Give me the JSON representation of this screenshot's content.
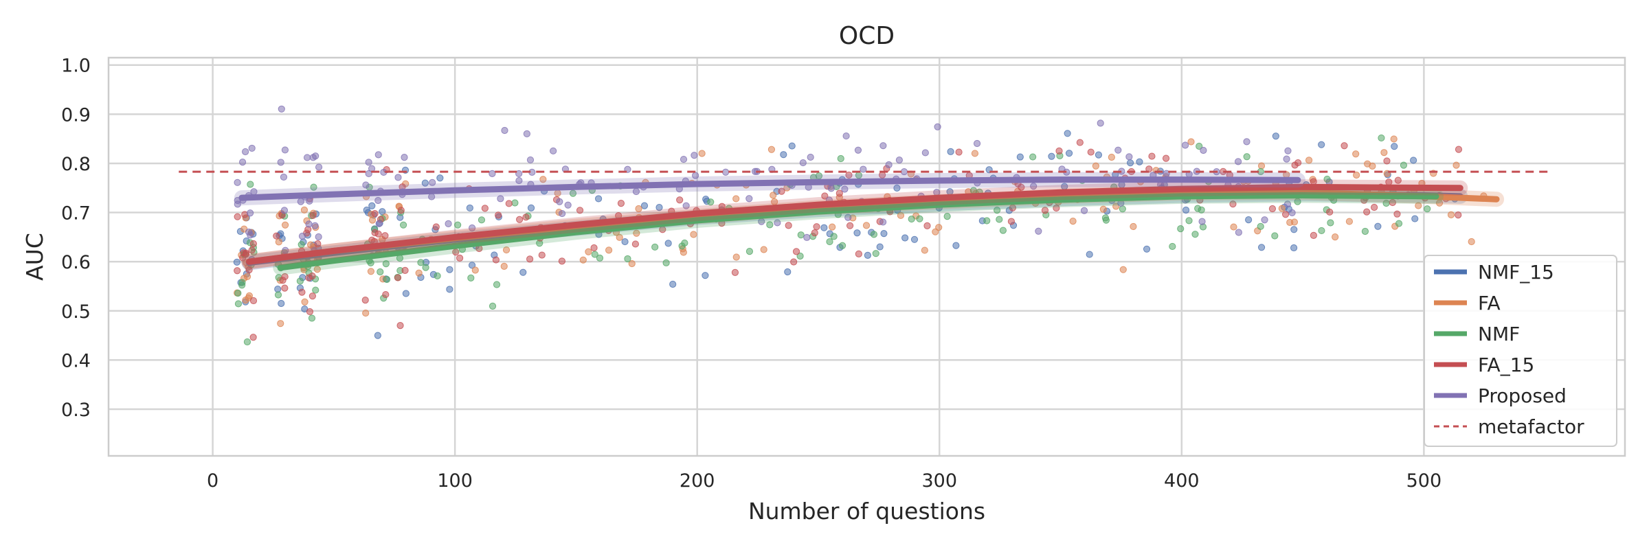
{
  "chart_data": {
    "type": "scatter",
    "title": "OCD",
    "xlabel": "Number of questions",
    "ylabel": "AUC",
    "xlim": [
      -43,
      583
    ],
    "ylim": [
      0.205,
      1.015
    ],
    "xticks": [
      0,
      100,
      200,
      300,
      400,
      500
    ],
    "yticks": [
      0.3,
      0.4,
      0.5,
      0.6,
      0.7,
      0.8,
      0.9,
      1.0
    ],
    "grid": true,
    "legend_position": "lower-right",
    "series": [
      {
        "name": "NMF_15",
        "color": "#4c72b0",
        "fit_line": [
          [
            15,
            0.598
          ],
          [
            50,
            0.618
          ],
          [
            100,
            0.645
          ],
          [
            150,
            0.668
          ],
          [
            200,
            0.69
          ],
          [
            250,
            0.706
          ],
          [
            300,
            0.718
          ],
          [
            350,
            0.728
          ],
          [
            400,
            0.735
          ],
          [
            450,
            0.738
          ],
          [
            500,
            0.735
          ],
          [
            515,
            0.733
          ]
        ]
      },
      {
        "name": "FA",
        "color": "#dd8452",
        "fit_line": [
          [
            15,
            0.6
          ],
          [
            50,
            0.622
          ],
          [
            100,
            0.648
          ],
          [
            150,
            0.672
          ],
          [
            200,
            0.692
          ],
          [
            250,
            0.71
          ],
          [
            300,
            0.722
          ],
          [
            350,
            0.733
          ],
          [
            400,
            0.74
          ],
          [
            450,
            0.741
          ],
          [
            500,
            0.733
          ],
          [
            530,
            0.727
          ]
        ]
      },
      {
        "name": "NMF",
        "color": "#55a868",
        "fit_line": [
          [
            28,
            0.588
          ],
          [
            50,
            0.602
          ],
          [
            100,
            0.632
          ],
          [
            150,
            0.66
          ],
          [
            200,
            0.684
          ],
          [
            250,
            0.702
          ],
          [
            300,
            0.716
          ],
          [
            350,
            0.726
          ],
          [
            400,
            0.733
          ],
          [
            450,
            0.735
          ],
          [
            505,
            0.733
          ]
        ]
      },
      {
        "name": "FA_15",
        "color": "#c44e52",
        "fit_line": [
          [
            15,
            0.6
          ],
          [
            50,
            0.622
          ],
          [
            100,
            0.65
          ],
          [
            150,
            0.675
          ],
          [
            200,
            0.698
          ],
          [
            250,
            0.716
          ],
          [
            300,
            0.73
          ],
          [
            350,
            0.741
          ],
          [
            400,
            0.748
          ],
          [
            450,
            0.752
          ],
          [
            515,
            0.75
          ]
        ]
      },
      {
        "name": "Proposed",
        "color": "#8172b3",
        "fit_line": [
          [
            12,
            0.73
          ],
          [
            50,
            0.737
          ],
          [
            100,
            0.745
          ],
          [
            150,
            0.752
          ],
          [
            200,
            0.758
          ],
          [
            250,
            0.762
          ],
          [
            300,
            0.765
          ],
          [
            350,
            0.767
          ],
          [
            400,
            0.767
          ],
          [
            448,
            0.766
          ]
        ]
      },
      {
        "name": "metafactor",
        "color": "#c44e52",
        "reference_line": {
          "y": 0.783,
          "x": [
            -14,
            552
          ],
          "style": "dashed"
        }
      }
    ],
    "scatter_summary": "dense jittered scatter of individual runs per series at each question count, AUC roughly 0.24-0.97"
  }
}
